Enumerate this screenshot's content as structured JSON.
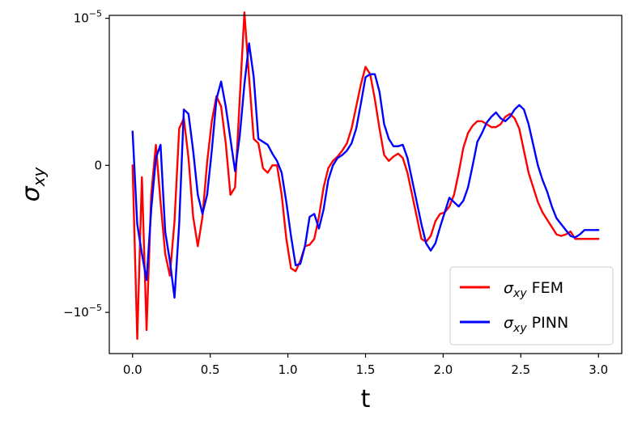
{
  "chart_data": {
    "type": "line",
    "xlabel": "t",
    "ylabel_symbol": "σ",
    "ylabel_subscript": "xy",
    "xlim": [
      -0.15,
      3.15
    ],
    "ylim": [
      -1.28e-05,
      1.02e-05
    ],
    "xticks": [
      0.0,
      0.5,
      1.0,
      1.5,
      2.0,
      2.5,
      3.0
    ],
    "xtick_labels": [
      "0.0",
      "0.5",
      "1.0",
      "1.5",
      "2.0",
      "2.5",
      "3.0"
    ],
    "yticks": [
      {
        "value": 1e-05,
        "base": "10",
        "exp": "−5"
      },
      {
        "value": 0,
        "base": "0",
        "exp": ""
      },
      {
        "value": -1e-05,
        "base": "−10",
        "exp": "−5"
      }
    ],
    "legend_position": "lower-right",
    "series": [
      {
        "name_symbol": "σ",
        "name_subscript": "xy",
        "name_suffix": " FEM",
        "color": "#ff0000",
        "x": [
          0.0,
          0.03,
          0.06,
          0.09,
          0.12,
          0.15,
          0.18,
          0.21,
          0.24,
          0.27,
          0.3,
          0.33,
          0.36,
          0.39,
          0.42,
          0.45,
          0.48,
          0.51,
          0.54,
          0.57,
          0.6,
          0.63,
          0.66,
          0.69,
          0.72,
          0.75,
          0.78,
          0.81,
          0.84,
          0.87,
          0.9,
          0.93,
          0.96,
          0.99,
          1.02,
          1.05,
          1.08,
          1.11,
          1.14,
          1.17,
          1.2,
          1.23,
          1.26,
          1.29,
          1.32,
          1.35,
          1.38,
          1.41,
          1.44,
          1.47,
          1.5,
          1.53,
          1.56,
          1.59,
          1.62,
          1.65,
          1.68,
          1.71,
          1.74,
          1.77,
          1.8,
          1.83,
          1.86,
          1.89,
          1.92,
          1.95,
          1.98,
          2.01,
          2.04,
          2.07,
          2.1,
          2.13,
          2.16,
          2.19,
          2.22,
          2.25,
          2.28,
          2.31,
          2.34,
          2.37,
          2.4,
          2.43,
          2.46,
          2.49,
          2.52,
          2.55,
          2.58,
          2.61,
          2.64,
          2.67,
          2.7,
          2.73,
          2.76,
          2.79,
          2.82,
          2.85,
          2.88,
          2.91,
          2.94,
          2.97,
          3.0
        ],
        "y": [
          0.0,
          -1.18e-05,
          -8e-07,
          -1.12e-05,
          -2e-06,
          1.4e-06,
          -2.5e-06,
          -6e-06,
          -7.5e-06,
          -3.8e-06,
          2.5e-06,
          3.2e-06,
          5e-07,
          -3.5e-06,
          -5.5e-06,
          -3.5e-06,
          2e-07,
          3e-06,
          4.7e-06,
          4e-06,
          1.5e-06,
          -2e-06,
          -1.5e-06,
          4.5e-06,
          1.04e-05,
          6e-06,
          1.8e-06,
          1.5e-06,
          -2e-07,
          -5e-07,
          0.0,
          0.0,
          -2e-06,
          -5e-06,
          -7e-06,
          -7.2e-06,
          -6.5e-06,
          -5.5e-06,
          -5.4e-06,
          -5e-06,
          -3.5e-06,
          -1.5e-06,
          -2e-07,
          3e-07,
          6e-07,
          1e-06,
          1.5e-06,
          2.5e-06,
          4e-06,
          5.5e-06,
          6.7e-06,
          6.2e-06,
          4.5e-06,
          2.5e-06,
          7e-07,
          3e-07,
          6e-07,
          8e-07,
          5e-07,
          -5e-07,
          -2e-06,
          -3.5e-06,
          -5e-06,
          -5.2e-06,
          -4.8e-06,
          -3.8e-06,
          -3.3e-06,
          -3.2e-06,
          -2.8e-06,
          -2e-06,
          -5e-07,
          1.2e-06,
          2.2e-06,
          2.7e-06,
          3e-06,
          3e-06,
          2.8e-06,
          2.6e-06,
          2.6e-06,
          2.8e-06,
          3.3e-06,
          3.5e-06,
          3.2e-06,
          2.5e-06,
          1e-06,
          -5e-07,
          -1.5e-06,
          -2.5e-06,
          -3.2e-06,
          -3.7e-06,
          -4.2e-06,
          -4.7e-06,
          -4.8e-06,
          -4.7e-06,
          -4.5e-06,
          -5e-06,
          -5e-06,
          -5e-06,
          -5e-06,
          -5e-06,
          -5e-06
        ]
      },
      {
        "name_symbol": "σ",
        "name_subscript": "xy",
        "name_suffix": " PINN",
        "color": "#0000ff",
        "x": [
          0.0,
          0.03,
          0.06,
          0.09,
          0.12,
          0.15,
          0.18,
          0.21,
          0.24,
          0.27,
          0.3,
          0.33,
          0.36,
          0.39,
          0.42,
          0.45,
          0.48,
          0.51,
          0.54,
          0.57,
          0.6,
          0.63,
          0.66,
          0.69,
          0.72,
          0.75,
          0.78,
          0.81,
          0.84,
          0.87,
          0.9,
          0.93,
          0.96,
          0.99,
          1.02,
          1.05,
          1.08,
          1.11,
          1.14,
          1.17,
          1.2,
          1.23,
          1.26,
          1.29,
          1.32,
          1.35,
          1.38,
          1.41,
          1.44,
          1.47,
          1.5,
          1.53,
          1.56,
          1.59,
          1.62,
          1.65,
          1.68,
          1.71,
          1.74,
          1.77,
          1.8,
          1.83,
          1.86,
          1.89,
          1.92,
          1.95,
          1.98,
          2.01,
          2.04,
          2.07,
          2.1,
          2.13,
          2.16,
          2.19,
          2.22,
          2.25,
          2.28,
          2.31,
          2.34,
          2.37,
          2.4,
          2.43,
          2.46,
          2.49,
          2.52,
          2.55,
          2.58,
          2.61,
          2.64,
          2.67,
          2.7,
          2.73,
          2.76,
          2.79,
          2.82,
          2.85,
          2.88,
          2.91,
          2.94,
          2.97,
          3.0
        ],
        "y": [
          2.3e-06,
          -4e-06,
          -6e-06,
          -7.8e-06,
          -3e-06,
          5e-07,
          1.4e-06,
          -4.5e-06,
          -6.5e-06,
          -9e-06,
          -4e-06,
          3.8e-06,
          3.5e-06,
          1e-06,
          -2e-06,
          -3.3e-06,
          -2e-06,
          1e-06,
          4.5e-06,
          5.7e-06,
          4e-06,
          1.8e-06,
          -4e-07,
          2e-06,
          5.5e-06,
          8.3e-06,
          6e-06,
          1.8e-06,
          1.6e-06,
          1.4e-06,
          8e-07,
          3e-07,
          -5e-07,
          -2.5e-06,
          -4.8e-06,
          -6.8e-06,
          -6.7e-06,
          -5.5e-06,
          -3.5e-06,
          -3.3e-06,
          -4.3e-06,
          -3e-06,
          -1e-06,
          0.0,
          5e-07,
          7e-07,
          1e-06,
          1.5e-06,
          2.5e-06,
          4.2e-06,
          6e-06,
          6.2e-06,
          6.2e-06,
          5e-06,
          2.8e-06,
          1.8e-06,
          1.3e-06,
          1.3e-06,
          1.4e-06,
          5e-07,
          -1e-06,
          -2.5e-06,
          -4e-06,
          -5.3e-06,
          -5.8e-06,
          -5.3e-06,
          -4.2e-06,
          -3.2e-06,
          -2.2e-06,
          -2.5e-06,
          -2.8e-06,
          -2.4e-06,
          -1.5e-06,
          0.0,
          1.6e-06,
          2.2e-06,
          2.9e-06,
          3.3e-06,
          3.6e-06,
          3.2e-06,
          3e-06,
          3.3e-06,
          3.8e-06,
          4.1e-06,
          3.8e-06,
          2.8e-06,
          1.4e-06,
          0.0,
          -1e-06,
          -1.8e-06,
          -2.8e-06,
          -3.6e-06,
          -4e-06,
          -4.4e-06,
          -4.8e-06,
          -4.9e-06,
          -4.7e-06,
          -4.4e-06,
          -4.4e-06,
          -4.4e-06,
          -4.4e-06
        ]
      }
    ]
  }
}
